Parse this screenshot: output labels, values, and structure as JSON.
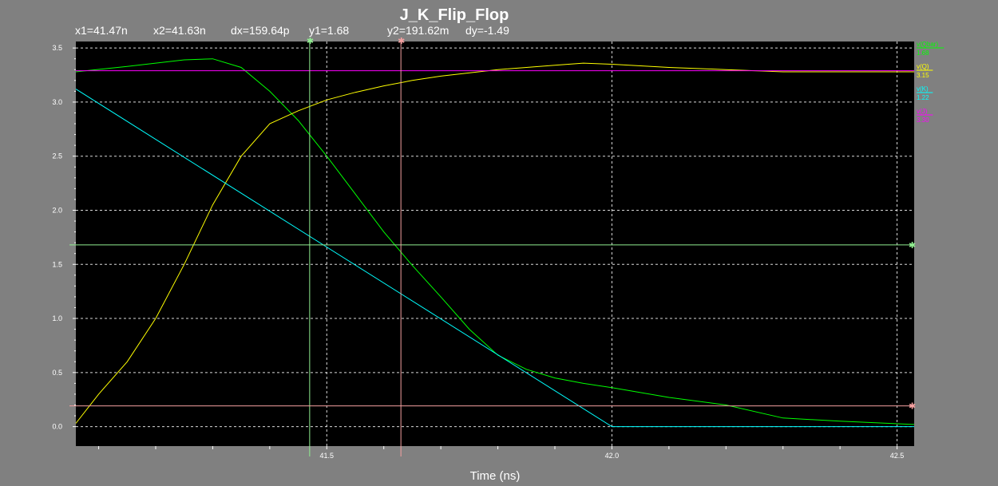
{
  "title": "J_K_Flip_Flop",
  "cursor_readout": {
    "x1": "x1=41.47n",
    "x2": "x2=41.63n",
    "dx": "dx=159.64p",
    "y1": "y1=1.68",
    "y2": "y2=191.62m",
    "dy": "dy=-1.49"
  },
  "chart_data": {
    "type": "line",
    "title": "J_K_Flip_Flop",
    "xlabel": "Time (ns)",
    "ylabel": "",
    "xlim": [
      41.06,
      42.53
    ],
    "ylim": [
      -0.18,
      3.56
    ],
    "grid": true,
    "legend_placement": "right",
    "x_ticks": [
      41.5,
      42.0,
      42.5
    ],
    "x_tick_labels": [
      "41.5",
      "42.0",
      "42.5"
    ],
    "y_ticks": [
      0.0,
      0.5,
      1.0,
      1.5,
      2.0,
      2.5,
      3.0,
      3.5
    ],
    "y_tick_labels": [
      "0.0",
      "0.5",
      "1.0",
      "1.5",
      "2.0",
      "2.5",
      "3.0",
      "3.5"
    ],
    "series": [
      {
        "name": "v(Qbar)",
        "value_label": "1.68",
        "color": "#00ff00",
        "x": [
          41.06,
          41.15,
          41.25,
          41.3,
          41.35,
          41.4,
          41.45,
          41.5,
          41.55,
          41.6,
          41.65,
          41.7,
          41.75,
          41.8,
          41.85,
          41.9,
          41.95,
          42.0,
          42.1,
          42.2,
          42.3,
          42.4,
          42.53
        ],
        "y": [
          3.28,
          3.33,
          3.39,
          3.4,
          3.32,
          3.1,
          2.83,
          2.5,
          2.15,
          1.8,
          1.49,
          1.2,
          0.9,
          0.66,
          0.53,
          0.45,
          0.4,
          0.36,
          0.27,
          0.2,
          0.08,
          0.05,
          0.02
        ]
      },
      {
        "name": "v(Q)",
        "value_label": "3.15",
        "color": "#ffff00",
        "x": [
          41.06,
          41.1,
          41.15,
          41.2,
          41.25,
          41.3,
          41.35,
          41.4,
          41.45,
          41.5,
          41.55,
          41.6,
          41.65,
          41.7,
          41.8,
          41.9,
          41.95,
          42.0,
          42.1,
          42.2,
          42.3,
          42.53
        ],
        "y": [
          0.03,
          0.3,
          0.6,
          1.0,
          1.5,
          2.05,
          2.5,
          2.8,
          2.92,
          3.02,
          3.09,
          3.15,
          3.2,
          3.24,
          3.3,
          3.34,
          3.36,
          3.35,
          3.32,
          3.3,
          3.28,
          3.28
        ]
      },
      {
        "name": "v(K)",
        "value_label": "1.22",
        "color": "#00ffff",
        "x": [
          41.06,
          42.0,
          42.53
        ],
        "y": [
          3.12,
          0.0,
          0.0
        ]
      },
      {
        "name": "v(J)",
        "value_label": "3.30",
        "color": "#ff00ff",
        "x": [
          41.06,
          42.53
        ],
        "y": [
          3.29,
          3.29
        ]
      }
    ],
    "cursors": [
      {
        "x": 41.47,
        "y": 1.68,
        "color": "#90ee90"
      },
      {
        "x": 41.63,
        "y": 0.19162,
        "color": "#f4a0a0"
      }
    ]
  }
}
